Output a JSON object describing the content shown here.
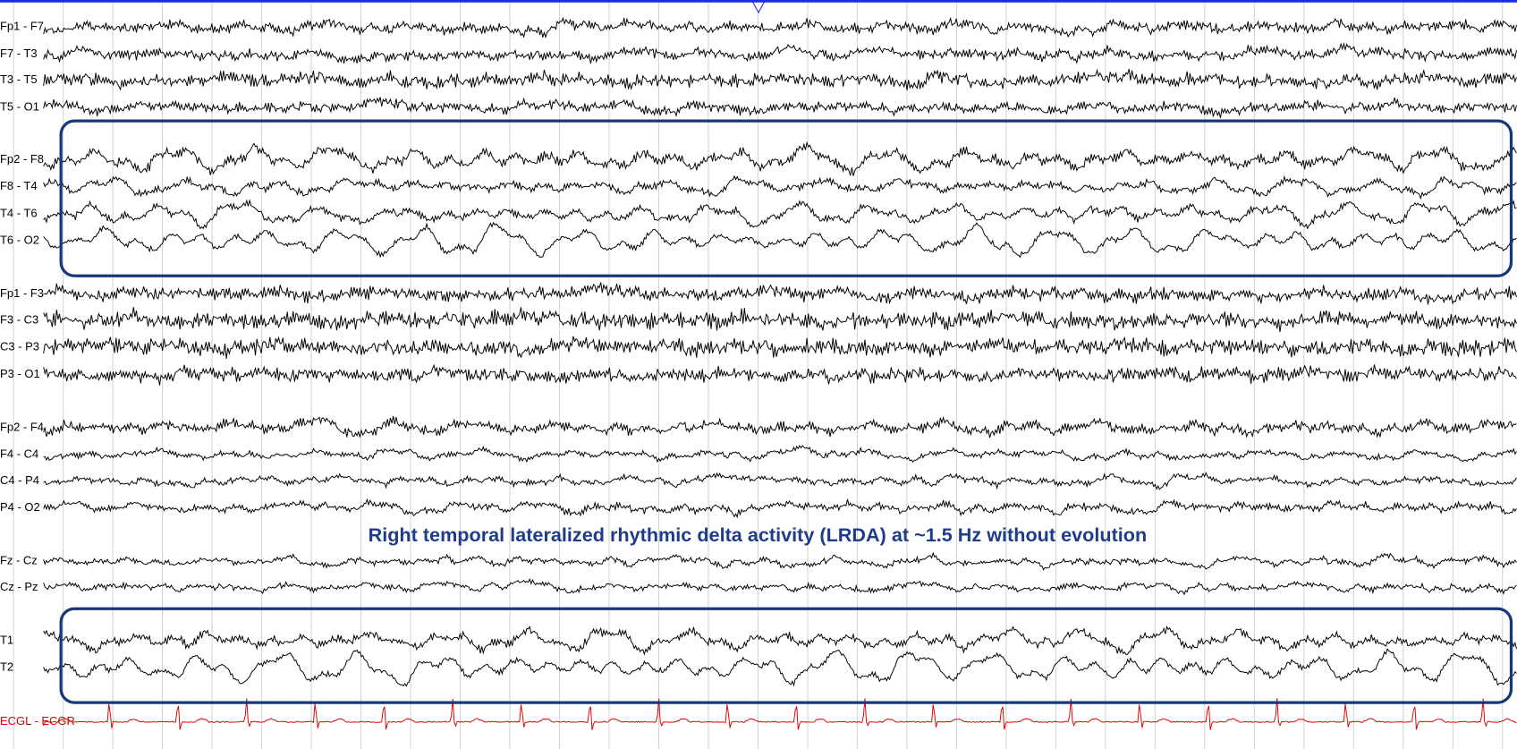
{
  "channels": [
    "Fp1 - F7",
    "F7 - T3",
    "T3 - T5",
    "T5 - O1",
    "Fp2 - F8",
    "F8 - T4",
    "T4 - T6",
    "T6 - O2",
    "Fp1 - F3",
    "F3 - C3",
    "C3 - P3",
    "P3 - O1",
    "Fp2 - F4",
    "F4 - C4",
    "C4 - P4",
    "P4 - O2",
    "Fz - Cz",
    "Cz - Pz",
    "T1",
    "T2",
    "ECGL - ECGR"
  ],
  "annotation": "Right temporal lateralized rhythmic delta activity (LRDA) at ~1.5 Hz without evolution"
}
